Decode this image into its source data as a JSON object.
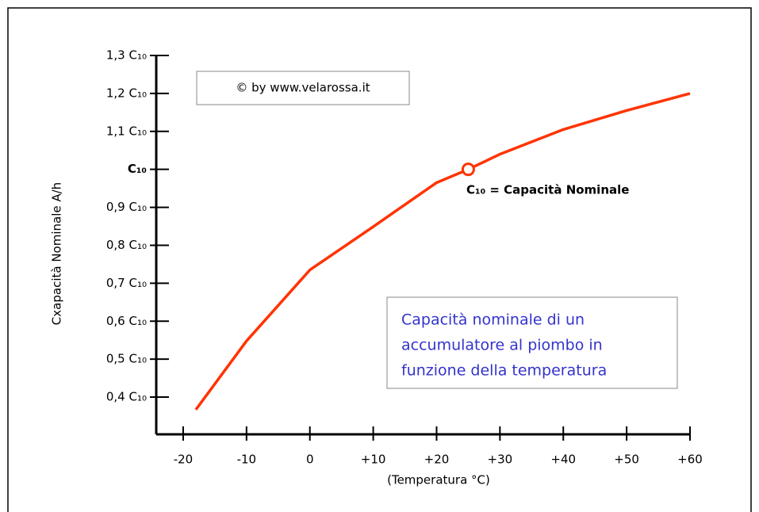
{
  "chart_data": {
    "type": "line",
    "y_label": "Cxapacità Nominale  A/h",
    "x_label": "(Temperatura °C)",
    "credit": "© by www.velarossa.it",
    "legend_text": [
      "Capacità nominale di  un",
      "accumulatore al piombo in",
      "funzione della temperatura"
    ],
    "annotation": "C₁₀ = Capacità Nominale",
    "marker": {
      "x": 25,
      "y": 1.0
    },
    "x": [
      -18,
      -10,
      0,
      10,
      20,
      25,
      30,
      40,
      50,
      60
    ],
    "series": [
      {
        "color": "#ff3300",
        "values": [
          0.367,
          0.548,
          0.735,
          0.849,
          0.965,
          1.0,
          1.04,
          1.105,
          1.155,
          1.2
        ]
      }
    ],
    "xlim": [
      -24.25,
      60
    ],
    "xticks": [
      -20,
      -10,
      0,
      {
        "value": 10,
        "label": "+10"
      },
      {
        "value": 20,
        "label": "+20"
      },
      {
        "value": 30,
        "label": "+30"
      },
      {
        "value": 40,
        "label": "+40"
      },
      {
        "value": 50,
        "label": "+50"
      },
      {
        "value": 60,
        "label": "+60"
      }
    ],
    "ylim": [
      0.302,
      1.3
    ],
    "yticks": [
      {
        "value": 0.4,
        "label": "0,4 C₁₀"
      },
      {
        "value": 0.5,
        "label": "0,5 C₁₀"
      },
      {
        "value": 0.6,
        "label": "0,6 C₁₀"
      },
      {
        "value": 0.7,
        "label": "0,7 C₁₀"
      },
      {
        "value": 0.8,
        "label": "0,8 C₁₀"
      },
      {
        "value": 0.9,
        "label": "0,9 C₁₀"
      },
      {
        "value": 1.0,
        "label": "C₁₀"
      },
      {
        "value": 1.1,
        "label": "1,1 C₁₀"
      },
      {
        "value": 1.2,
        "label": "1,2 C₁₀"
      },
      {
        "value": 1.3,
        "label": "1,3 C₁₀"
      }
    ]
  }
}
